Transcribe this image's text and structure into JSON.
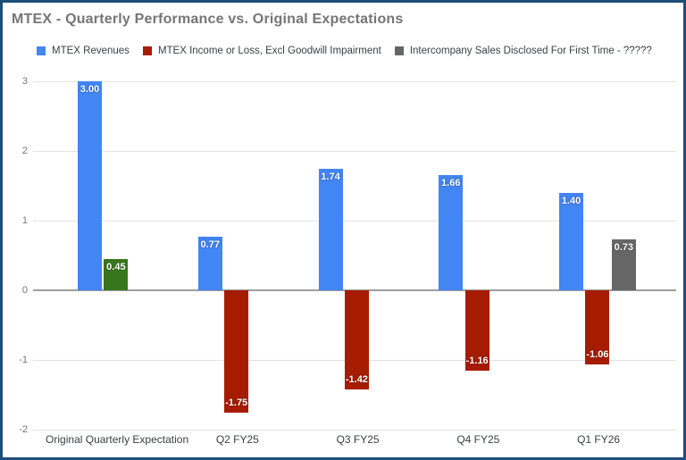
{
  "window": {
    "border_color": "#1d4e79",
    "background_color": "#ffffff"
  },
  "header": {
    "title": "MTEX - Quarterly Performance vs. Original Expectations"
  },
  "chart_data": {
    "type": "bar",
    "title": "MTEX - Quarterly Performance vs. Original Expectations",
    "categories": [
      "Original Quarterly Expectation",
      "Q2 FY25",
      "Q3 FY25",
      "Q4 FY25",
      "Q1 FY26"
    ],
    "series": [
      {
        "name": "MTEX Revenues",
        "color": "#4285f4",
        "values": [
          3.0,
          0.77,
          1.74,
          1.66,
          1.4
        ]
      },
      {
        "name": "MTEX Income or Loss, Excl Goodwill Impairment",
        "color": "#a61c00",
        "values": [
          0.45,
          -1.75,
          -1.42,
          -1.16,
          -1.06
        ],
        "point_colors": {
          "0": "#38761d"
        }
      },
      {
        "name": "Intercompany Sales Disclosed For First Time - ?????",
        "color": "#666666",
        "values": [
          null,
          null,
          null,
          null,
          0.73
        ]
      }
    ],
    "value_labels": [
      "3.00",
      "0.77",
      "1.74",
      "1.66",
      "1.40",
      "0.45",
      "-1.75",
      "-1.42",
      "-1.16",
      "-1.06",
      "0.73"
    ],
    "value_label_color": "#ffffff",
    "xlabel": "",
    "ylabel": "",
    "ylim": [
      -2,
      3
    ],
    "yticks": [
      3,
      2,
      1,
      0,
      -1,
      -2
    ],
    "grid": true,
    "gridline_color": "#e3e3e3",
    "baseline_color": "#9e9e9e",
    "legend_position": "top"
  }
}
